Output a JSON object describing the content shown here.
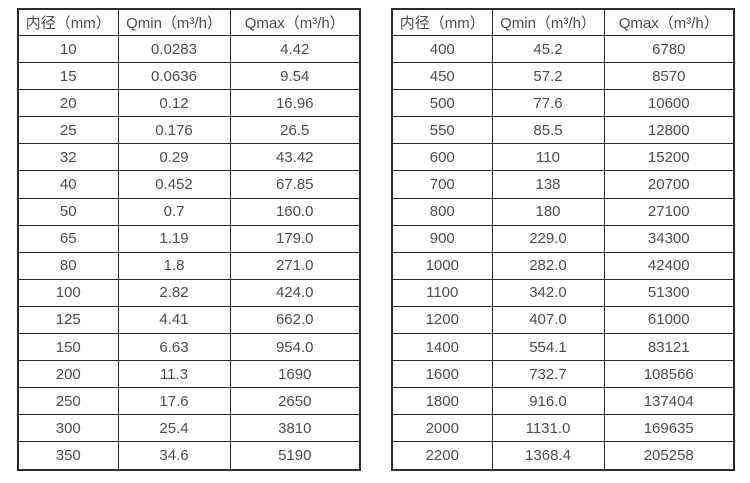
{
  "colors": {
    "border": "#2b2b2b",
    "text": "#4d4d4d",
    "background": "#ffffff"
  },
  "tables": [
    {
      "name": "flow-rate-table-small-diameters",
      "headers": [
        "内径（mm）",
        "Qmin（m³/h）",
        "Qmax（m³/h）"
      ],
      "rows": [
        [
          "10",
          "0.0283",
          "4.42"
        ],
        [
          "15",
          "0.0636",
          "9.54"
        ],
        [
          "20",
          "0.12",
          "16.96"
        ],
        [
          "25",
          "0.176",
          "26.5"
        ],
        [
          "32",
          "0.29",
          "43.42"
        ],
        [
          "40",
          "0.452",
          "67.85"
        ],
        [
          "50",
          "0.7",
          "160.0"
        ],
        [
          "65",
          "1.19",
          "179.0"
        ],
        [
          "80",
          "1.8",
          "271.0"
        ],
        [
          "100",
          "2.82",
          "424.0"
        ],
        [
          "125",
          "4.41",
          "662.0"
        ],
        [
          "150",
          "6.63",
          "954.0"
        ],
        [
          "200",
          "11.3",
          "1690"
        ],
        [
          "250",
          "17.6",
          "2650"
        ],
        [
          "300",
          "25.4",
          "3810"
        ],
        [
          "350",
          "34.6",
          "5190"
        ]
      ]
    },
    {
      "name": "flow-rate-table-large-diameters",
      "headers": [
        "内径（mm）",
        "Qmin（m³/h）",
        "Qmax（m³/h）"
      ],
      "rows": [
        [
          "400",
          "45.2",
          "6780"
        ],
        [
          "450",
          "57.2",
          "8570"
        ],
        [
          "500",
          "77.6",
          "10600"
        ],
        [
          "550",
          "85.5",
          "12800"
        ],
        [
          "600",
          "110",
          "15200"
        ],
        [
          "700",
          "138",
          "20700"
        ],
        [
          "800",
          "180",
          "27100"
        ],
        [
          "900",
          "229.0",
          "34300"
        ],
        [
          "1000",
          "282.0",
          "42400"
        ],
        [
          "1100",
          "342.0",
          "51300"
        ],
        [
          "1200",
          "407.0",
          "61000"
        ],
        [
          "1400",
          "554.1",
          "83121"
        ],
        [
          "1600",
          "732.7",
          "108566"
        ],
        [
          "1800",
          "916.0",
          "137404"
        ],
        [
          "2000",
          "1131.0",
          "169635"
        ],
        [
          "2200",
          "1368.4",
          "205258"
        ]
      ]
    }
  ]
}
